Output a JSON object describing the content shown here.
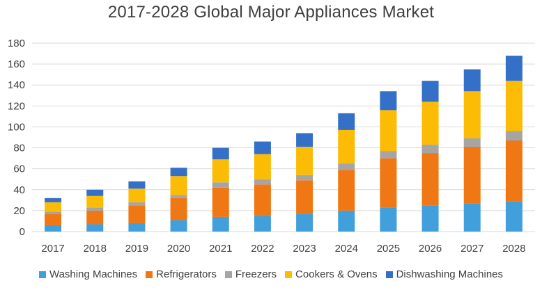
{
  "chart_data": {
    "type": "bar",
    "stacked": true,
    "title": "2017-2028 Global Major Appliances Market",
    "xlabel": "",
    "ylabel": "",
    "ylim": [
      0,
      180
    ],
    "yticks": [
      0,
      20,
      40,
      60,
      80,
      100,
      120,
      140,
      160,
      180
    ],
    "grid": true,
    "legend_position": "bottom",
    "categories": [
      "2017",
      "2018",
      "2019",
      "2020",
      "2021",
      "2022",
      "2023",
      "2024",
      "2025",
      "2026",
      "2027",
      "2028"
    ],
    "series": [
      {
        "name": "Washing Machines",
        "color": "#41a0dc",
        "values": [
          6,
          7,
          8,
          11,
          14,
          15,
          17,
          20,
          23,
          25,
          27,
          29
        ]
      },
      {
        "name": "Refrigerators",
        "color": "#f07814",
        "values": [
          11,
          13,
          17,
          21,
          28,
          30,
          32,
          39,
          47,
          50,
          54,
          58
        ]
      },
      {
        "name": "Freezers",
        "color": "#a5a5a5",
        "values": [
          2,
          3,
          3,
          3,
          5,
          5,
          5,
          6,
          7,
          8,
          8,
          9
        ]
      },
      {
        "name": "Cookers & Ovens",
        "color": "#fcbb05",
        "values": [
          9,
          11,
          13,
          18,
          22,
          24,
          27,
          32,
          39,
          41,
          45,
          48
        ]
      },
      {
        "name": "Dishwashing Machines",
        "color": "#3470c8",
        "values": [
          4,
          6,
          7,
          8,
          11,
          12,
          13,
          16,
          18,
          20,
          21,
          24
        ]
      }
    ]
  }
}
